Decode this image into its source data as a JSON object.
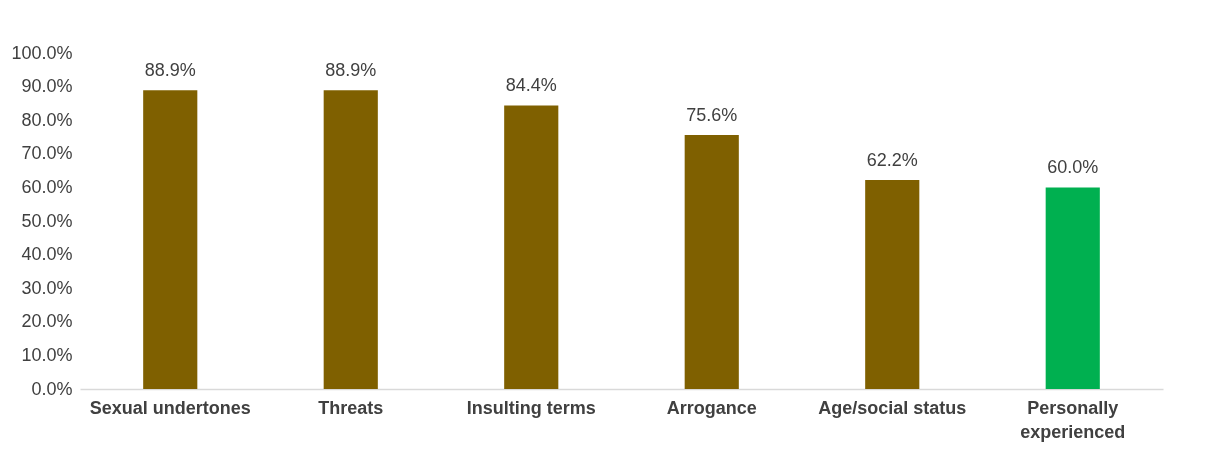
{
  "chart_data": {
    "type": "bar",
    "categories": [
      "Sexual undertones",
      "Threats",
      "Insulting terms",
      "Arrogance",
      "Age/social status",
      "Personally experienced"
    ],
    "values": [
      88.9,
      88.9,
      84.4,
      75.6,
      62.2,
      60.0
    ],
    "colors": [
      "#7f6000",
      "#7f6000",
      "#7f6000",
      "#7f6000",
      "#7f6000",
      "#00b050"
    ],
    "value_labels": [
      "88.9%",
      "88.9%",
      "84.4%",
      "75.6%",
      "62.2%",
      "60.0%"
    ],
    "ylim": [
      0,
      100
    ],
    "yticks": [
      {
        "value": 0,
        "label": "0.0%"
      },
      {
        "value": 10,
        "label": "10.0%"
      },
      {
        "value": 20,
        "label": "20.0%"
      },
      {
        "value": 30,
        "label": "30.0%"
      },
      {
        "value": 40,
        "label": "40.0%"
      },
      {
        "value": 50,
        "label": "50.0%"
      },
      {
        "value": 60,
        "label": "60.0%"
      },
      {
        "value": 70,
        "label": "70.0%"
      },
      {
        "value": 80,
        "label": "80.0%"
      },
      {
        "value": 90,
        "label": "90.0%"
      },
      {
        "value": 100,
        "label": "100.0%"
      }
    ],
    "grid": false
  }
}
